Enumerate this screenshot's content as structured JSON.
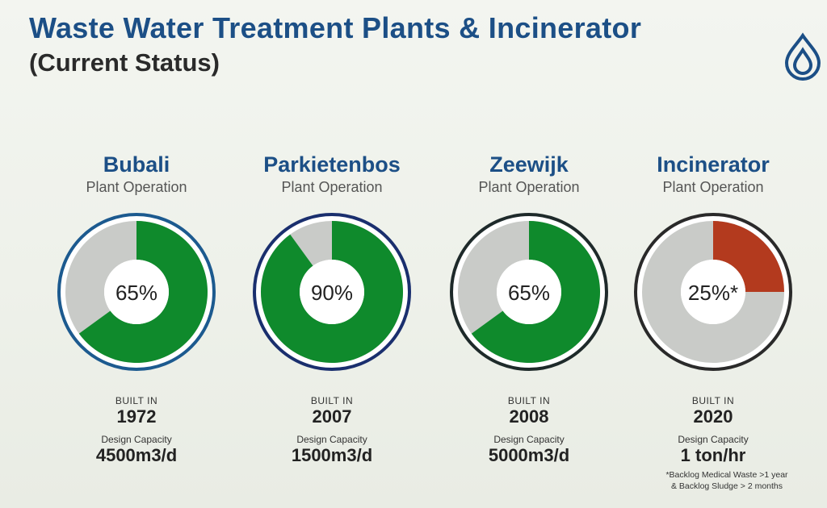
{
  "header": {
    "title": "Waste Water Treatment Plants & Incinerator",
    "subtitle": "(Current Status)"
  },
  "logo": {
    "icon": "water-drop-logo-icon",
    "color": "#1c4f86"
  },
  "chart_data": {
    "type": "pie",
    "style": "donut",
    "title": "Waste Water Treatment Plants & Incinerator (Current Status)",
    "items": [
      {
        "name": "Bubali",
        "subtitle": "Plant Operation",
        "value": 65,
        "value_label": "65%",
        "color": "#0f8a2c",
        "remainder_color": "#c9cbc8",
        "ring_color": "#1c5a8f",
        "built_label": "BUILT IN",
        "built_year": "1972",
        "capacity_label": "Design Capacity",
        "capacity": "4500m3/d"
      },
      {
        "name": "Parkietenbos",
        "subtitle": "Plant Operation",
        "value": 90,
        "value_label": "90%",
        "color": "#0f8a2c",
        "remainder_color": "#c9cbc8",
        "ring_color": "#1a2f6e",
        "built_label": "BUILT IN",
        "built_year": "2007",
        "capacity_label": "Design Capacity",
        "capacity": "1500m3/d"
      },
      {
        "name": "Zeewijk",
        "subtitle": "Plant Operation",
        "value": 65,
        "value_label": "65%",
        "color": "#0f8a2c",
        "remainder_color": "#c9cbc8",
        "ring_color": "#1e2a2a",
        "built_label": "BUILT IN",
        "built_year": "2008",
        "capacity_label": "Design Capacity",
        "capacity": "5000m3/d"
      },
      {
        "name": "Incinerator",
        "subtitle": "Plant Operation",
        "value": 25,
        "value_label": "25%*",
        "color": "#b33a1e",
        "remainder_color": "#c9cbc8",
        "ring_color": "#2a2a2a",
        "built_label": "BUILT IN",
        "built_year": "2020",
        "capacity_label": "Design Capacity",
        "capacity": "1 ton/hr"
      }
    ]
  },
  "footnote": {
    "line1": "*Backlog Medical Waste >1 year",
    "line2": "& Backlog Sludge > 2 months"
  }
}
